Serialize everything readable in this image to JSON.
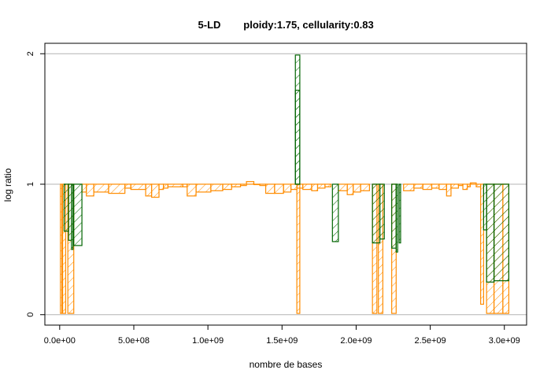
{
  "chart_data": {
    "type": "bar",
    "title_left": "5-LD",
    "title_right": "ploidy:1.75, cellularity:0.83",
    "xlabel": "nombre de bases",
    "ylabel": "log ratio",
    "xlim": [
      -100000000.0,
      3150000000.0
    ],
    "ylim": [
      -0.08,
      2.08
    ],
    "x_ticks": [
      0,
      500000000,
      1000000000,
      1500000000,
      2000000000,
      2500000000,
      3000000000
    ],
    "x_tick_labels": [
      "0.0e+00",
      "5.0e+08",
      "1.0e+09",
      "1.5e+09",
      "2.0e+09",
      "2.5e+09",
      "3.0e+09"
    ],
    "y_ticks": [
      0,
      1,
      2
    ],
    "y_tick_labels": [
      "0",
      "1",
      "2"
    ],
    "grid_y": [
      0,
      1,
      2
    ],
    "colors": {
      "orange": "#ff8c00",
      "green": "#006400",
      "grid": "#b4b4b4",
      "frame": "#000000"
    },
    "series": [
      {
        "color": "orange",
        "segments": [
          [
            150000000,
            180000000,
            0.94
          ],
          [
            180000000,
            230000000,
            0.91
          ],
          [
            230000000,
            330000000,
            0.94
          ],
          [
            330000000,
            440000000,
            0.93
          ],
          [
            440000000,
            480000000,
            0.97
          ],
          [
            480000000,
            580000000,
            0.96
          ],
          [
            580000000,
            620000000,
            0.91
          ],
          [
            620000000,
            670000000,
            0.9
          ],
          [
            670000000,
            700000000,
            0.96
          ],
          [
            700000000,
            730000000,
            0.97
          ],
          [
            730000000,
            830000000,
            0.98
          ],
          [
            830000000,
            860000000,
            0.98
          ],
          [
            860000000,
            920000000,
            0.91
          ],
          [
            920000000,
            1020000000,
            0.94
          ],
          [
            1020000000,
            1100000000,
            0.95
          ],
          [
            1100000000,
            1160000000,
            0.96
          ],
          [
            1160000000,
            1220000000,
            0.98
          ],
          [
            1220000000,
            1260000000,
            0.99
          ],
          [
            1260000000,
            1310000000,
            1.02
          ],
          [
            1310000000,
            1350000000,
            1.0
          ],
          [
            1350000000,
            1390000000,
            0.99
          ],
          [
            1390000000,
            1450000000,
            0.93
          ],
          [
            1450000000,
            1510000000,
            0.93
          ],
          [
            1510000000,
            1560000000,
            0.94
          ],
          [
            1560000000,
            1600000000,
            0.96
          ],
          [
            1600000000,
            1640000000,
            0.97
          ],
          [
            1640000000,
            1700000000,
            0.96
          ],
          [
            1700000000,
            1740000000,
            0.95
          ],
          [
            1740000000,
            1790000000,
            0.97
          ],
          [
            1790000000,
            1830000000,
            0.98
          ],
          [
            1880000000,
            1940000000,
            0.95
          ],
          [
            1940000000,
            1980000000,
            0.92
          ],
          [
            1980000000,
            2030000000,
            0.94
          ],
          [
            2030000000,
            2090000000,
            0.95
          ],
          [
            2320000000,
            2390000000,
            0.95
          ],
          [
            2390000000,
            2450000000,
            0.97
          ],
          [
            2450000000,
            2510000000,
            0.96
          ],
          [
            2510000000,
            2560000000,
            0.97
          ],
          [
            2560000000,
            2610000000,
            0.96
          ],
          [
            2610000000,
            2640000000,
            0.91
          ],
          [
            2640000000,
            2690000000,
            0.97
          ],
          [
            2690000000,
            2720000000,
            0.99
          ],
          [
            2720000000,
            2750000000,
            0.96
          ],
          [
            2750000000,
            2770000000,
            0.98
          ],
          [
            2770000000,
            2810000000,
            1.01
          ],
          [
            2810000000,
            2840000000,
            0.98
          ],
          [
            2840000000,
            2860000000,
            0.08
          ],
          [
            5000000,
            15000000,
            0.01
          ],
          [
            20000000,
            40000000,
            0.01
          ],
          [
            55000000,
            95000000,
            0.01
          ],
          [
            1600000000,
            1620000000,
            0.01
          ],
          [
            2110000000,
            2140000000,
            0.01
          ],
          [
            2150000000,
            2180000000,
            0.01
          ],
          [
            2240000000,
            2270000000,
            0.01
          ],
          [
            2880000000,
            2930000000,
            0.01
          ],
          [
            2930000000,
            2990000000,
            0.01
          ],
          [
            2990000000,
            3030000000,
            0.01
          ]
        ]
      },
      {
        "color": "green",
        "segments": [
          [
            30000000,
            60000000,
            0.64
          ],
          [
            60000000,
            80000000,
            0.57
          ],
          [
            80000000,
            90000000,
            0.5
          ],
          [
            95000000,
            150000000,
            0.53
          ],
          [
            1590000000,
            1620000000,
            1.99
          ],
          [
            1590000000,
            1620000000,
            1.72
          ],
          [
            1840000000,
            1880000000,
            0.56
          ],
          [
            2110000000,
            2160000000,
            0.55
          ],
          [
            2160000000,
            2190000000,
            0.58
          ],
          [
            2240000000,
            2270000000,
            0.51
          ],
          [
            2270000000,
            2280000000,
            0.48
          ],
          [
            2290000000,
            2300000000,
            0.55
          ],
          [
            2860000000,
            2880000000,
            0.65
          ],
          [
            2880000000,
            2930000000,
            0.25
          ],
          [
            2930000000,
            3030000000,
            0.26
          ]
        ]
      }
    ]
  }
}
